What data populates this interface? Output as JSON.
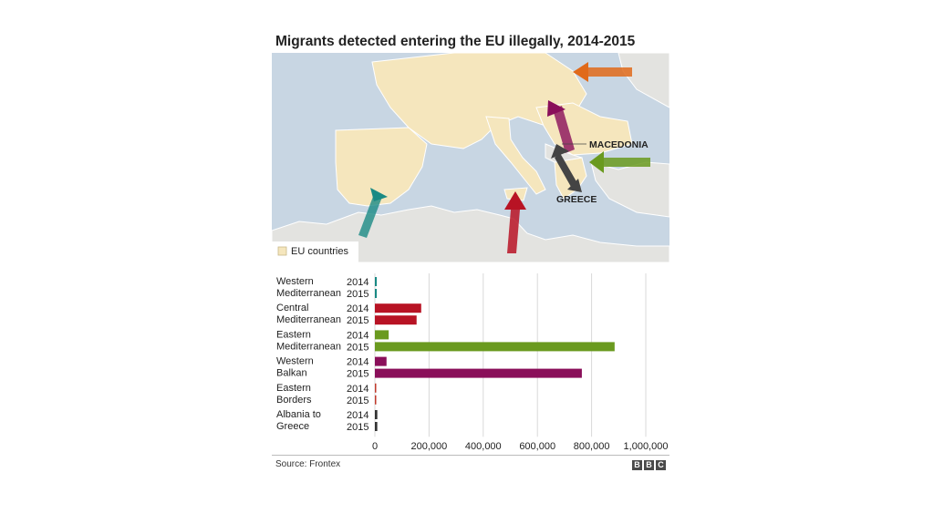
{
  "title": "Migrants detected entering the EU illegally, 2014-2015",
  "map": {
    "legend_label": "EU countries",
    "labels": {
      "macedonia": "MACEDONIA",
      "greece": "GREECE"
    },
    "colors": {
      "sea": "#c8d6e3",
      "non_eu": "#e3e3e0",
      "eu": "#f5e6bd",
      "border": "#ffffff"
    }
  },
  "chart_data": {
    "type": "bar",
    "orientation": "horizontal",
    "categories": [
      {
        "name": [
          "Western",
          "Mediterranean"
        ],
        "color": "#1a8a84",
        "values": [
          7000,
          7000
        ]
      },
      {
        "name": [
          "Central",
          "Mediterranean"
        ],
        "color": "#b81324",
        "values": [
          171000,
          154000
        ]
      },
      {
        "name": [
          "Eastern",
          "Mediterranean"
        ],
        "color": "#6a9a1f",
        "values": [
          51000,
          885000
        ]
      },
      {
        "name": [
          "Western",
          "Balkan"
        ],
        "color": "#8a0f5a",
        "values": [
          43000,
          764000
        ]
      },
      {
        "name": [
          "Eastern",
          "Borders"
        ],
        "color": "#c0392b",
        "values": [
          1300,
          1900
        ]
      },
      {
        "name": [
          "Albania to",
          "Greece"
        ],
        "color": "#333333",
        "values": [
          9000,
          8900
        ]
      }
    ],
    "years": [
      "2014",
      "2015"
    ],
    "xlim": [
      0,
      1000000
    ],
    "ticks": [
      0,
      200000,
      400000,
      600000,
      800000,
      1000000
    ],
    "tick_labels": [
      "0",
      "200,000",
      "400,000",
      "600,000",
      "800,000",
      "1,000,000"
    ],
    "grid": true
  },
  "source": "Source: Frontex",
  "brand": [
    "B",
    "B",
    "C"
  ]
}
